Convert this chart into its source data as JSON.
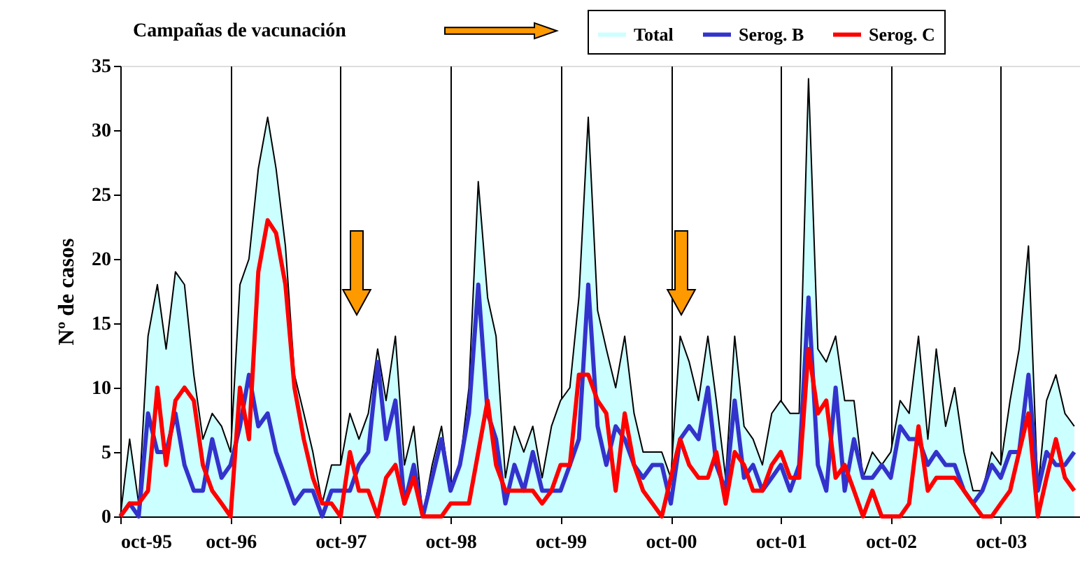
{
  "chart_data": {
    "type": "line",
    "ylabel": "Nº de casos",
    "annotations": [
      "Campañas de vacunación"
    ],
    "x": [
      "1995-10",
      "1995-11",
      "1995-12",
      "1996-01",
      "1996-02",
      "1996-03",
      "1996-04",
      "1996-05",
      "1996-06",
      "1996-07",
      "1996-08",
      "1996-09",
      "1996-10",
      "1996-11",
      "1996-12",
      "1997-01",
      "1997-02",
      "1997-03",
      "1997-04",
      "1997-05",
      "1997-06",
      "1997-07",
      "1997-08",
      "1997-09",
      "1997-10",
      "1997-11",
      "1997-12",
      "1998-01",
      "1998-02",
      "1998-03",
      "1998-04",
      "1998-05",
      "1998-06",
      "1998-07",
      "1998-08",
      "1998-09",
      "1998-10",
      "1998-11",
      "1998-12",
      "1999-01",
      "1999-02",
      "1999-03",
      "1999-04",
      "1999-05",
      "1999-06",
      "1999-07",
      "1999-08",
      "1999-09",
      "1999-10",
      "1999-11",
      "1999-12",
      "2000-01",
      "2000-02",
      "2000-03",
      "2000-04",
      "2000-05",
      "2000-06",
      "2000-07",
      "2000-08",
      "2000-09",
      "2000-10",
      "2000-11",
      "2000-12",
      "2001-01",
      "2001-02",
      "2001-03",
      "2001-04",
      "2001-05",
      "2001-06",
      "2001-07",
      "2001-08",
      "2001-09",
      "2001-10",
      "2001-11",
      "2001-12",
      "2002-01",
      "2002-02",
      "2002-03",
      "2002-04",
      "2002-05",
      "2002-06",
      "2002-07",
      "2002-08",
      "2002-09",
      "2002-10",
      "2002-11",
      "2002-12",
      "2003-01",
      "2003-02",
      "2003-03",
      "2003-04",
      "2003-05",
      "2003-06",
      "2003-07",
      "2003-08",
      "2003-09",
      "2003-10",
      "2003-11",
      "2003-12",
      "2004-01",
      "2004-02",
      "2004-03",
      "2004-04",
      "2004-05",
      "2004-06"
    ],
    "series": [
      {
        "name": "Total",
        "type": "area",
        "color": "#ccffff",
        "values": [
          0,
          6,
          1,
          14,
          18,
          13,
          19,
          18,
          11,
          6,
          8,
          7,
          5,
          18,
          20,
          27,
          31,
          27,
          21,
          11,
          8,
          5,
          1,
          4,
          4,
          8,
          6,
          8,
          13,
          9,
          14,
          4,
          7,
          0,
          4,
          7,
          2,
          4,
          10,
          26,
          17,
          14,
          3,
          7,
          5,
          7,
          3,
          7,
          9,
          10,
          17,
          31,
          16,
          13,
          10,
          14,
          8,
          5,
          5,
          5,
          3,
          14,
          12,
          9,
          14,
          9,
          3,
          14,
          7,
          6,
          4,
          8,
          9,
          8,
          8,
          34,
          13,
          12,
          14,
          9,
          9,
          3,
          5,
          4,
          5,
          9,
          8,
          14,
          6,
          13,
          7,
          10,
          5,
          2,
          2,
          5,
          4,
          9,
          13,
          21,
          2,
          9,
          11,
          8,
          7
        ]
      },
      {
        "name": "Serog. B",
        "color": "#3333cc",
        "values": [
          0,
          1,
          0,
          8,
          5,
          5,
          8,
          4,
          2,
          2,
          6,
          3,
          4,
          7,
          11,
          7,
          8,
          5,
          3,
          1,
          2,
          2,
          0,
          2,
          2,
          2,
          4,
          5,
          12,
          6,
          9,
          1,
          4,
          0,
          3,
          6,
          2,
          4,
          8,
          18,
          8,
          6,
          1,
          4,
          2,
          5,
          2,
          2,
          2,
          4,
          6,
          18,
          7,
          4,
          7,
          6,
          4,
          3,
          4,
          4,
          1,
          6,
          7,
          6,
          10,
          4,
          2,
          9,
          3,
          4,
          2,
          3,
          4,
          2,
          4,
          17,
          4,
          2,
          10,
          2,
          6,
          3,
          3,
          4,
          3,
          7,
          6,
          6,
          4,
          5,
          4,
          4,
          2,
          1,
          2,
          4,
          3,
          5,
          5,
          11,
          2,
          5,
          4,
          4,
          5
        ]
      },
      {
        "name": "Serog. C",
        "color": "#ff0000",
        "values": [
          0,
          1,
          1,
          2,
          10,
          4,
          9,
          10,
          9,
          4,
          2,
          1,
          0,
          10,
          6,
          19,
          23,
          22,
          18,
          10,
          6,
          3,
          1,
          1,
          0,
          5,
          2,
          2,
          0,
          3,
          4,
          1,
          3,
          0,
          0,
          0,
          1,
          1,
          1,
          5,
          9,
          4,
          2,
          2,
          2,
          2,
          1,
          2,
          4,
          4,
          11,
          11,
          9,
          8,
          2,
          8,
          4,
          2,
          1,
          0,
          3,
          6,
          4,
          3,
          3,
          5,
          1,
          5,
          4,
          2,
          2,
          4,
          5,
          3,
          3,
          13,
          8,
          9,
          3,
          4,
          2,
          0,
          2,
          0,
          0,
          0,
          1,
          7,
          2,
          3,
          3,
          3,
          2,
          1,
          0,
          0,
          1,
          2,
          5,
          8,
          0,
          3,
          6,
          3,
          2
        ]
      }
    ],
    "xlim": [
      "1995-10",
      "2004-06-20"
    ],
    "xticks": [
      {
        "value": "1995-10",
        "label": "oct-95"
      },
      {
        "value": "1996-10",
        "label": "oct-96"
      },
      {
        "value": "1997-10",
        "label": "oct-97"
      },
      {
        "value": "1998-10",
        "label": "oct-98"
      },
      {
        "value": "1999-10",
        "label": "oct-99"
      },
      {
        "value": "2000-10",
        "label": "oct-00"
      },
      {
        "value": "2001-10",
        "label": "oct-01"
      },
      {
        "value": "2002-10",
        "label": "oct-02"
      },
      {
        "value": "2003-10",
        "label": "oct-03"
      }
    ],
    "ylim": [
      0,
      35
    ],
    "yticks": [
      0,
      5,
      10,
      15,
      20,
      25,
      30,
      35
    ],
    "grid": "x",
    "legend": "top right",
    "line_style": "solid",
    "marker": "none"
  }
}
